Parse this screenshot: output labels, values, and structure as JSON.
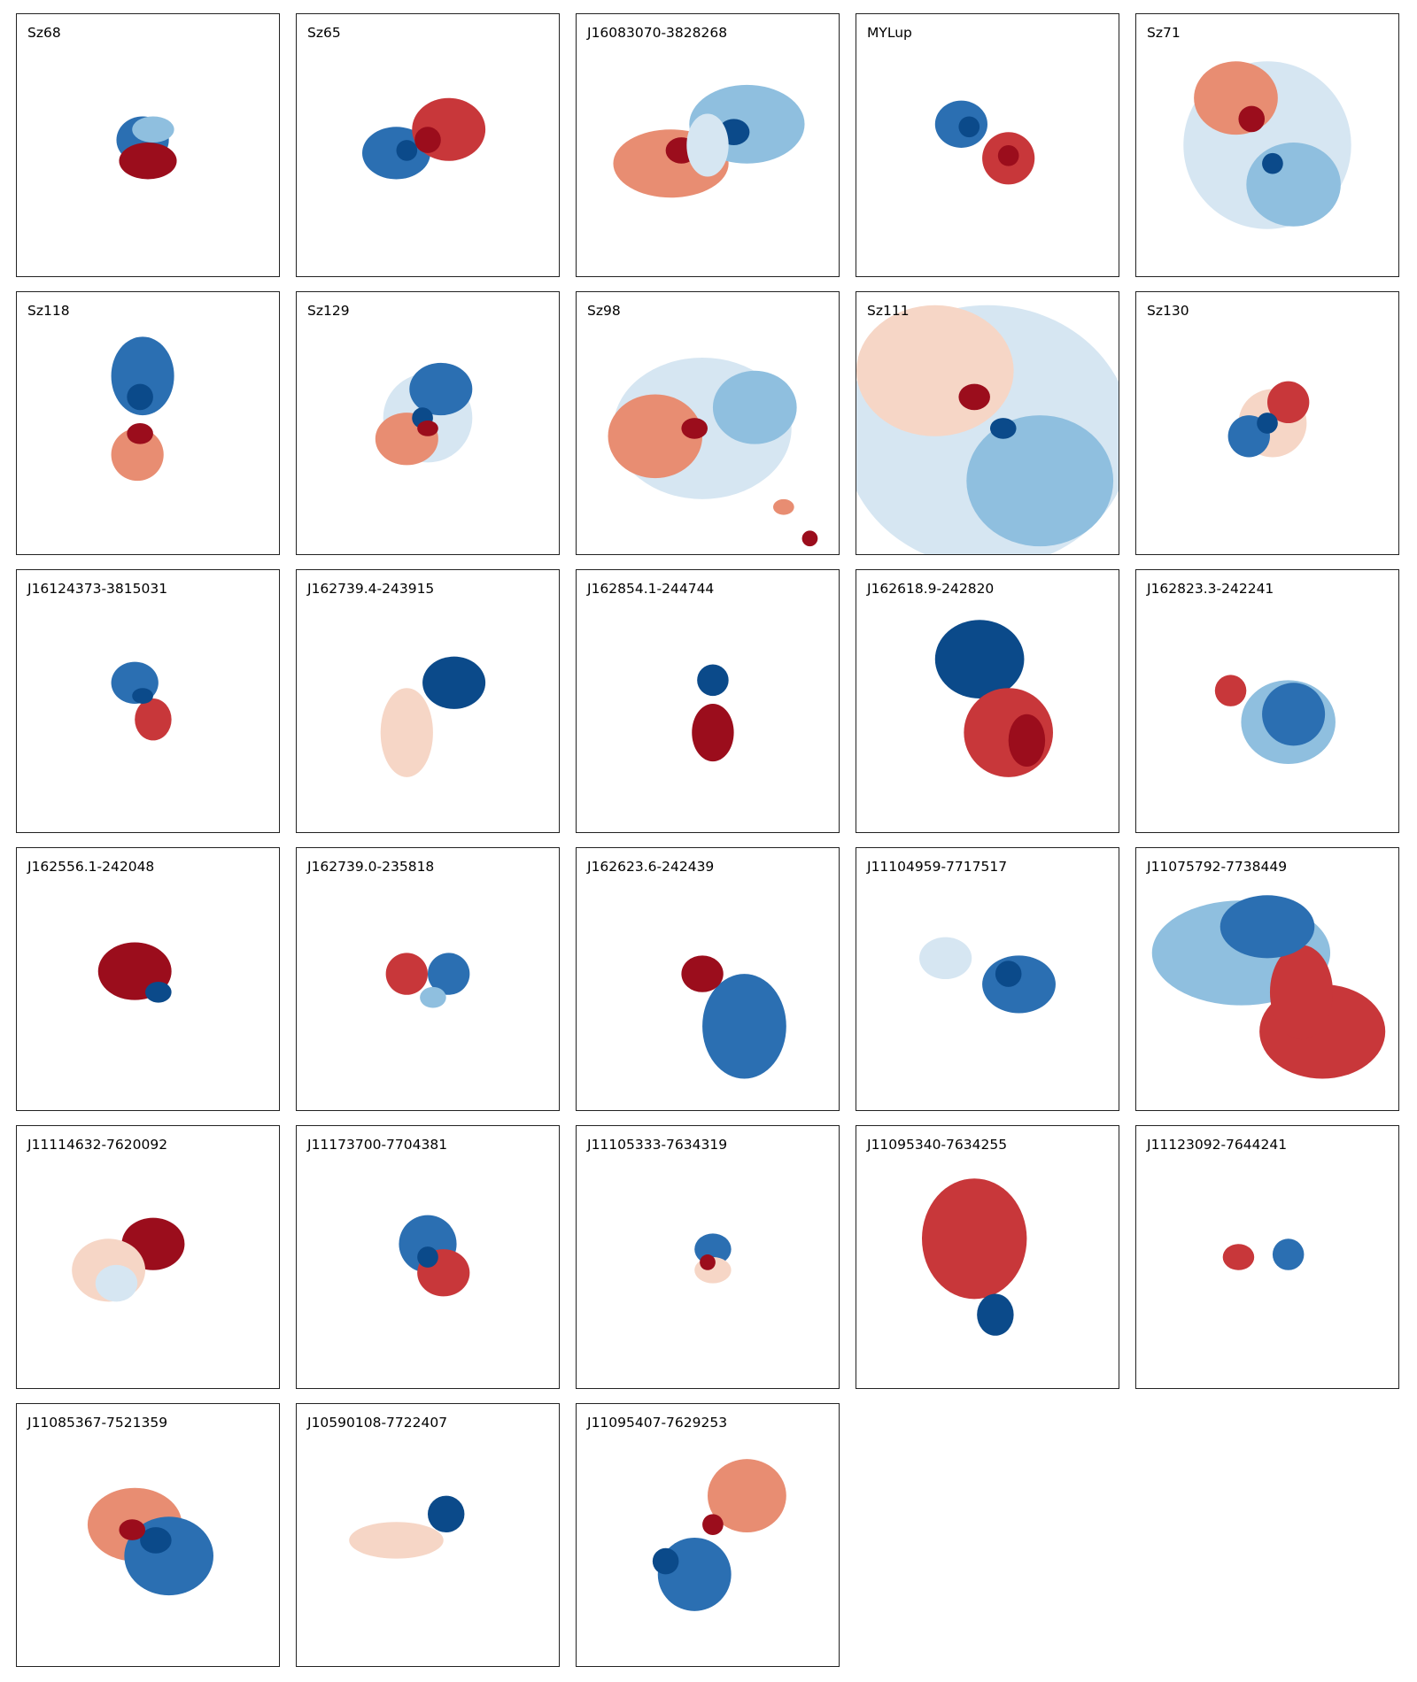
{
  "figure": {
    "panels": [
      {
        "name": "Sz68"
      },
      {
        "name": "Sz65"
      },
      {
        "name": "J16083070-3828268"
      },
      {
        "name": "MYLup"
      },
      {
        "name": "Sz71"
      },
      {
        "name": "Sz118"
      },
      {
        "name": "Sz129"
      },
      {
        "name": "Sz98"
      },
      {
        "name": "Sz111"
      },
      {
        "name": "Sz130"
      },
      {
        "name": "J16124373-3815031"
      },
      {
        "name": "J162739.4-243915"
      },
      {
        "name": "J162854.1-244744"
      },
      {
        "name": "J162618.9-242820"
      },
      {
        "name": "J162823.3-242241"
      },
      {
        "name": "J162556.1-242048"
      },
      {
        "name": "J162739.0-235818"
      },
      {
        "name": "J162623.6-242439"
      },
      {
        "name": "J11104959-7717517"
      },
      {
        "name": "J11075792-7738449"
      },
      {
        "name": "J11114632-7620092"
      },
      {
        "name": "J11173700-7704381"
      },
      {
        "name": "J11105333-7634319"
      },
      {
        "name": "J11095340-7634255"
      },
      {
        "name": "J11123092-7644241"
      },
      {
        "name": "J11085367-7521359"
      },
      {
        "name": "J10590108-7722407"
      },
      {
        "name": "J11095407-7629253"
      }
    ],
    "colors": {
      "blue_dark": "#0b4a8a",
      "blue_mid": "#2b6fb2",
      "blue_light": "#8fbfdf",
      "blue_pale": "#d6e6f2",
      "red_dark": "#9b0d1c",
      "red_mid": "#c8373a",
      "red_light": "#e88d72",
      "red_pale": "#f6d6c6"
    }
  }
}
